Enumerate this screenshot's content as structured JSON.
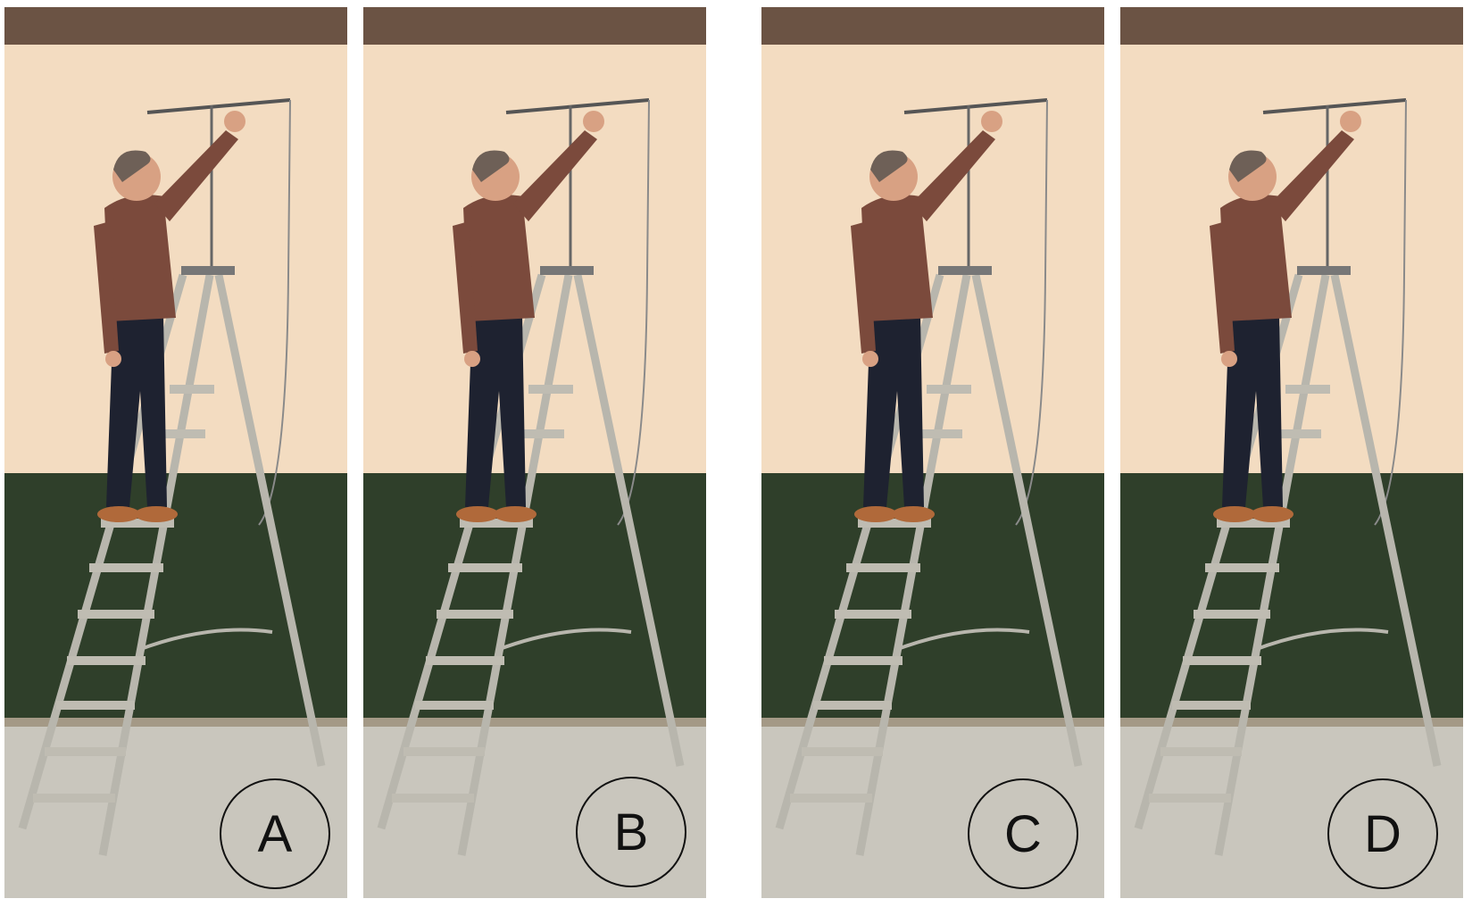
{
  "panels": [
    {
      "label": "A"
    },
    {
      "label": "B"
    },
    {
      "label": "C"
    },
    {
      "label": "D"
    }
  ],
  "colors": {
    "wall": "#f3dcc1",
    "upper_trim": "#6b5344",
    "lower_wall": "#2f3f2a",
    "floor": "#c9c6bd",
    "ladder": "#b8b6ad",
    "shirt": "#7b4a3c",
    "jeans": "#1e2230",
    "shoes": "#b0693a",
    "skin": "#d8a183"
  }
}
